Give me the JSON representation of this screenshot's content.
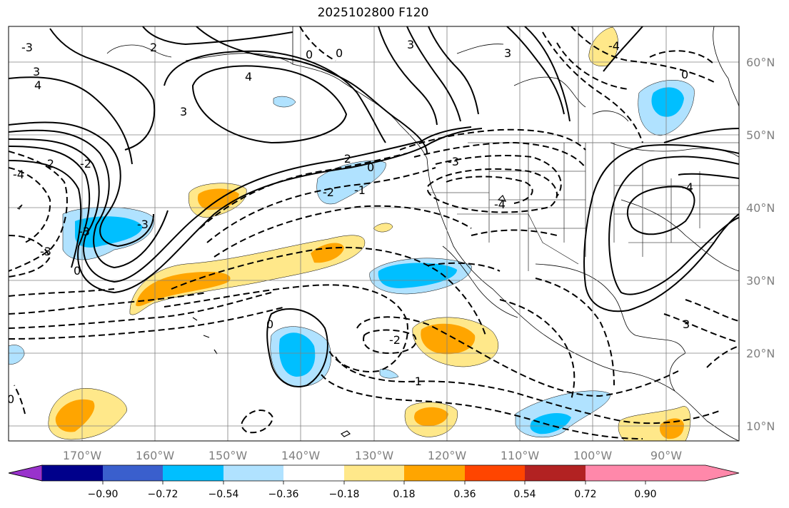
{
  "title": "2025102800 F120",
  "lon_labels": [
    "170°W",
    "160°W",
    "150°W",
    "140°W",
    "130°W",
    "120°W",
    "110°W",
    "100°W",
    "90°W"
  ],
  "lat_labels": [
    "60°N",
    "50°N",
    "40°N",
    "30°N",
    "20°N",
    "10°N"
  ],
  "colorbar": {
    "ticks": [
      "−0.90",
      "−0.72",
      "−0.54",
      "−0.36",
      "−0.18",
      "0.18",
      "0.36",
      "0.54",
      "0.72",
      "0.90"
    ],
    "colors": [
      "#9932cc",
      "#00008b",
      "#3a5fcd",
      "#00bfff",
      "#b0e2ff",
      "#ffffff",
      "#ffe88a",
      "#ffa500",
      "#ff4500",
      "#b22222",
      "#ff88aa"
    ]
  },
  "contour_labels": [
    "3",
    "4",
    "3",
    "4",
    "3",
    "0",
    "0",
    "-2",
    "-3",
    "-4",
    "-4",
    "0",
    "-2",
    "-2",
    "-1",
    "0",
    "-3",
    "-3",
    "-2",
    "-4",
    "-3",
    "-4",
    "0",
    "3",
    "-3",
    "0",
    "-2",
    "-1",
    "0",
    "2",
    "3"
  ],
  "colors": {
    "shade_blue_light": "#b0e2ff",
    "shade_blue": "#00bfff",
    "shade_yellow": "#ffe88a",
    "shade_orange": "#ffa500",
    "grid": "#808080",
    "contour": "#000000"
  }
}
